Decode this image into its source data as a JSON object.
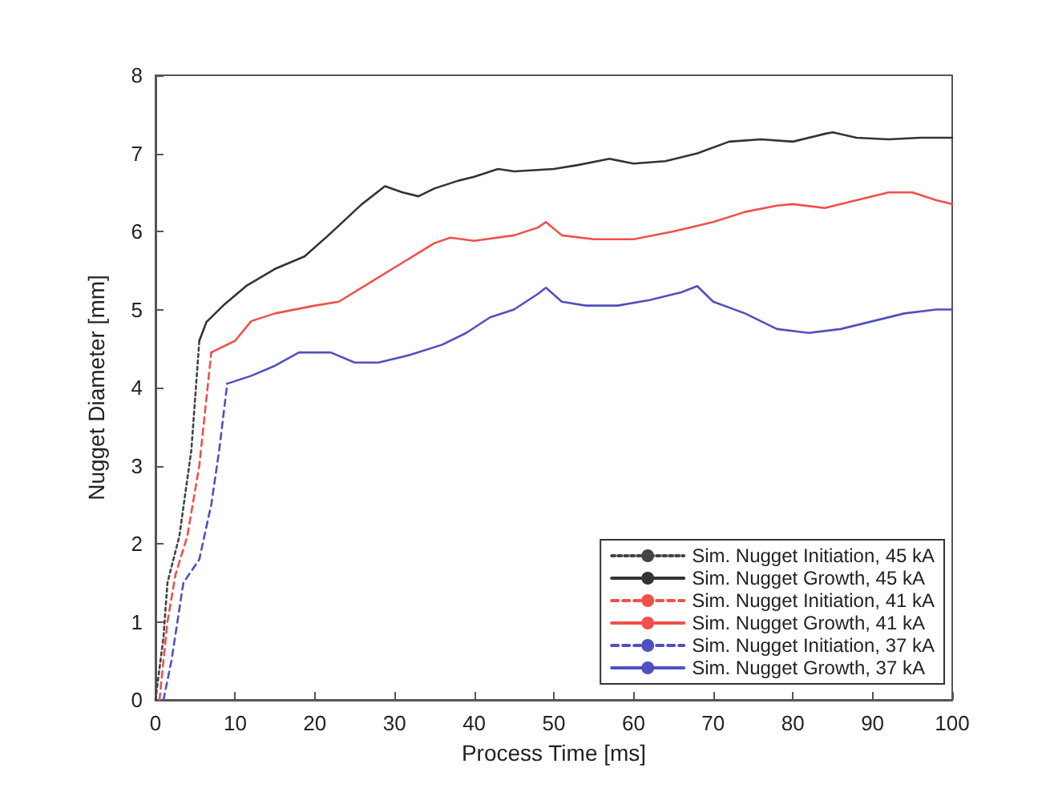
{
  "chart_data": {
    "type": "line",
    "xlabel": "Process Time [ms]",
    "ylabel": "Nugget Diameter [mm]",
    "xlim": [
      0,
      100
    ],
    "xticks": [
      0,
      10,
      20,
      30,
      40,
      50,
      60,
      70,
      80,
      90,
      100
    ],
    "ylim": [
      0,
      8
    ],
    "yticks": [
      0,
      1,
      2,
      3,
      4,
      5,
      6,
      7,
      8
    ],
    "grid": false,
    "legend": "bottom right",
    "marker": "none",
    "series": [
      {
        "name": "Sim. Nugget Initiation, 45 kA",
        "color": "#444444",
        "line_style": "dotted",
        "x": [
          0,
          1,
          1.5,
          3,
          4.5,
          5.5
        ],
        "values": [
          0,
          0.8,
          1.5,
          2.1,
          3.2,
          4.6
        ]
      },
      {
        "name": "Sim. Nugget Growth, 45 kA",
        "color": "#333333",
        "line_style": "solid",
        "x": [
          5.5,
          6.4,
          8.7,
          11.5,
          15,
          18.7,
          21.7,
          25.8,
          28.8,
          31,
          33,
          35,
          38,
          40,
          43,
          45,
          50,
          53,
          57,
          60,
          64,
          68,
          72,
          76,
          80,
          84,
          85,
          88,
          92,
          96,
          100
        ],
        "values": [
          4.6,
          4.84,
          5.07,
          5.31,
          5.52,
          5.68,
          5.95,
          6.34,
          6.58,
          6.5,
          6.45,
          6.55,
          6.65,
          6.7,
          6.8,
          6.77,
          6.8,
          6.85,
          6.93,
          6.87,
          6.9,
          7.0,
          7.15,
          7.18,
          7.15,
          7.25,
          7.27,
          7.2,
          7.18,
          7.2,
          7.2
        ]
      },
      {
        "name": "Sim. Nugget Initiation, 41 kA",
        "color": "#f0504a",
        "line_style": "dashed",
        "x": [
          0.5,
          1.5,
          2.5,
          4,
          5.5,
          7
        ],
        "values": [
          0,
          1.0,
          1.6,
          2.1,
          3.0,
          4.45
        ]
      },
      {
        "name": "Sim. Nugget Growth, 41 kA",
        "color": "#f0504a",
        "line_style": "solid",
        "x": [
          7,
          10,
          12,
          15,
          20,
          23,
          27,
          31,
          35,
          37,
          40,
          45,
          48,
          49,
          51,
          55,
          60,
          65,
          70,
          74,
          78,
          80,
          84,
          88,
          92,
          95,
          98,
          100
        ],
        "values": [
          4.45,
          4.6,
          4.85,
          4.95,
          5.05,
          5.1,
          5.35,
          5.6,
          5.85,
          5.92,
          5.88,
          5.95,
          6.05,
          6.12,
          5.95,
          5.9,
          5.9,
          6.0,
          6.12,
          6.25,
          6.33,
          6.35,
          6.3,
          6.4,
          6.5,
          6.5,
          6.4,
          6.35
        ]
      },
      {
        "name": "Sim. Nugget Initiation, 37 kA",
        "color": "#5050c0",
        "line_style": "dashed",
        "x": [
          1,
          2,
          3.5,
          5.5,
          7,
          8,
          9
        ],
        "values": [
          0,
          0.5,
          1.5,
          1.8,
          2.5,
          3.2,
          4.05
        ]
      },
      {
        "name": "Sim. Nugget Growth, 37 kA",
        "color": "#5050c0",
        "line_style": "solid",
        "x": [
          9,
          12,
          15,
          18,
          22,
          25,
          28,
          32,
          36,
          39,
          42,
          45,
          48,
          49,
          51,
          54,
          58,
          62,
          66,
          68,
          70,
          74,
          78,
          82,
          86,
          90,
          94,
          98,
          100
        ],
        "values": [
          4.05,
          4.15,
          4.28,
          4.45,
          4.45,
          4.32,
          4.32,
          4.42,
          4.55,
          4.7,
          4.9,
          5.0,
          5.2,
          5.28,
          5.1,
          5.05,
          5.05,
          5.12,
          5.22,
          5.3,
          5.1,
          4.95,
          4.75,
          4.7,
          4.75,
          4.85,
          4.95,
          5.0,
          5.0
        ]
      }
    ]
  }
}
